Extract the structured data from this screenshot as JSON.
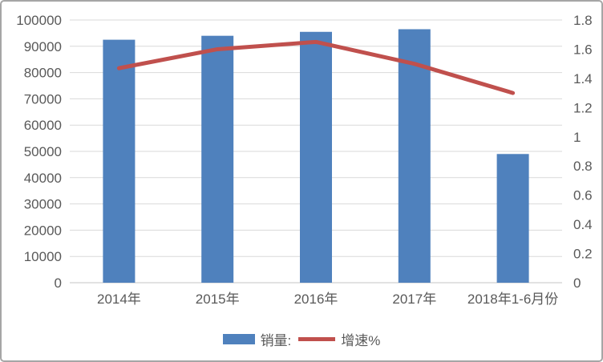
{
  "chart_data": {
    "type": "combo",
    "title": "",
    "categories": [
      "2014年",
      "2015年",
      "2016年",
      "2017年",
      "2018年1-6月份"
    ],
    "series": [
      {
        "name": "销量:",
        "type": "bar",
        "axis": "left",
        "color": "#4F81BD",
        "values": [
          92500,
          94000,
          95500,
          96500,
          49000
        ]
      },
      {
        "name": "增速%",
        "type": "line",
        "axis": "right",
        "color": "#C0504D",
        "values": [
          1.47,
          1.6,
          1.65,
          1.5,
          1.3
        ]
      }
    ],
    "left_axis": {
      "min": 0,
      "max": 100000,
      "step": 10000,
      "ticks": [
        "0",
        "10000",
        "20000",
        "30000",
        "40000",
        "50000",
        "60000",
        "70000",
        "80000",
        "90000",
        "100000"
      ]
    },
    "right_axis": {
      "min": 0,
      "max": 1.8,
      "step": 0.2,
      "ticks": [
        "0",
        "0.2",
        "0.4",
        "0.6",
        "0.8",
        "1",
        "1.2",
        "1.4",
        "1.6",
        "1.8"
      ]
    },
    "grid": true,
    "legend_position": "bottom"
  },
  "legend": {
    "items": [
      {
        "label": "销量:",
        "marker": "bar",
        "color": "#4F81BD"
      },
      {
        "label": "增速%",
        "marker": "line",
        "color": "#C0504D"
      }
    ]
  },
  "colors": {
    "bar": "#4F81BD",
    "line": "#C0504D",
    "grid": "#D9D9D9",
    "axis_line": "#C6C6C6",
    "axis_text": "#595959",
    "border": "#A6A6A6",
    "background": "#FFFFFF"
  }
}
